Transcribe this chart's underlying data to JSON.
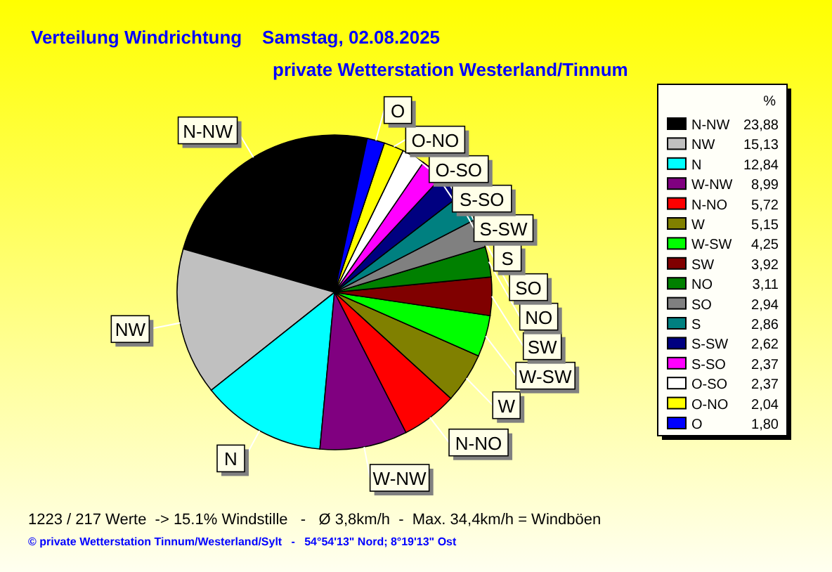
{
  "chart_data": {
    "type": "pie",
    "title": "Verteilung Windrichtung    Samstag, 02.08.2025",
    "subtitle": "private Wetterstation Westerland/Tinnum",
    "legend_title": "%",
    "categories": [
      "N-NW",
      "NW",
      "N",
      "W-NW",
      "N-NO",
      "W",
      "W-SW",
      "SW",
      "NO",
      "SO",
      "S",
      "S-SW",
      "S-SO",
      "O-SO",
      "O-NO",
      "O"
    ],
    "values": [
      23.88,
      15.13,
      12.84,
      8.99,
      5.72,
      5.15,
      4.25,
      3.92,
      3.11,
      2.94,
      2.86,
      2.62,
      2.37,
      2.37,
      2.04,
      1.8
    ],
    "value_labels": [
      "23,88",
      "15,13",
      "12,84",
      "8,99",
      "5,72",
      "5,15",
      "4,25",
      "3,92",
      "3,11",
      "2,94",
      "2,86",
      "2,62",
      "2,37",
      "2,37",
      "2,04",
      "1,80"
    ],
    "colors": [
      "#000000",
      "#c0c0c0",
      "#00ffff",
      "#800080",
      "#ff0000",
      "#808000",
      "#00ff00",
      "#800000",
      "#008000",
      "#808080",
      "#008080",
      "#000080",
      "#ff00ff",
      "#ffffff",
      "#ffff00",
      "#0000ff"
    ],
    "legend": "right",
    "annotations": [
      "1223 / 217 Werte  -> 15.1% Windstille   -   Ø 3,8km/h  -  Max. 34,4km/h = Windböen",
      "© private Wetterstation Tinnum/Westerland/Sylt   -   54°54'13\" Nord; 8°19'13\" Ost"
    ]
  }
}
